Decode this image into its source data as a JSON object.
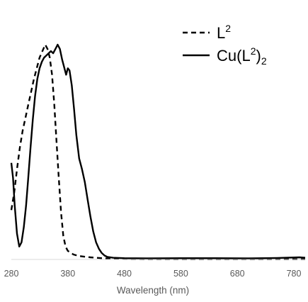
{
  "chart_data": {
    "type": "line",
    "title": "",
    "xlabel": "Wavelength (nm)",
    "ylabel": "",
    "xlim": [
      280,
      800
    ],
    "ylim": [
      0,
      1
    ],
    "xticks": [
      "280",
      "380",
      "480",
      "580",
      "680",
      "780"
    ],
    "grid": false,
    "legend_position": "top-right",
    "series": [
      {
        "name": "L",
        "name_superscript": "2",
        "name_subscript": "",
        "style": "dashed",
        "color": "#000000",
        "points": [
          [
            280,
            0.23
          ],
          [
            285,
            0.31
          ],
          [
            290,
            0.42
          ],
          [
            295,
            0.52
          ],
          [
            300,
            0.6
          ],
          [
            305,
            0.66
          ],
          [
            310,
            0.72
          ],
          [
            315,
            0.78
          ],
          [
            320,
            0.84
          ],
          [
            325,
            0.89
          ],
          [
            330,
            0.94
          ],
          [
            335,
            0.97
          ],
          [
            340,
            1.0
          ],
          [
            344,
            0.98
          ],
          [
            348,
            0.94
          ],
          [
            352,
            0.86
          ],
          [
            356,
            0.72
          ],
          [
            360,
            0.55
          ],
          [
            364,
            0.38
          ],
          [
            368,
            0.22
          ],
          [
            372,
            0.11
          ],
          [
            376,
            0.06
          ],
          [
            380,
            0.04
          ],
          [
            390,
            0.023
          ],
          [
            400,
            0.016
          ],
          [
            420,
            0.01
          ],
          [
            440,
            0.006
          ],
          [
            460,
            0.003
          ],
          [
            480,
            0.002
          ],
          [
            520,
            0.001
          ],
          [
            600,
            0.001
          ],
          [
            700,
            0.001
          ],
          [
            800,
            0.001
          ]
        ]
      },
      {
        "name": "Cu(L",
        "name_superscript": "2",
        "name_subscript": "2",
        "name_suffix": ")",
        "style": "solid",
        "color": "#000000",
        "points": [
          [
            280,
            0.45
          ],
          [
            283,
            0.38
          ],
          [
            286,
            0.25
          ],
          [
            290,
            0.12
          ],
          [
            294,
            0.06
          ],
          [
            298,
            0.08
          ],
          [
            302,
            0.15
          ],
          [
            306,
            0.25
          ],
          [
            310,
            0.38
          ],
          [
            314,
            0.52
          ],
          [
            318,
            0.65
          ],
          [
            322,
            0.76
          ],
          [
            326,
            0.84
          ],
          [
            330,
            0.89
          ],
          [
            334,
            0.92
          ],
          [
            338,
            0.94
          ],
          [
            342,
            0.95
          ],
          [
            346,
            0.96
          ],
          [
            350,
            0.97
          ],
          [
            354,
            0.96
          ],
          [
            358,
            0.98
          ],
          [
            362,
            1.0
          ],
          [
            366,
            0.98
          ],
          [
            370,
            0.93
          ],
          [
            374,
            0.89
          ],
          [
            377,
            0.86
          ],
          [
            380,
            0.89
          ],
          [
            383,
            0.88
          ],
          [
            387,
            0.81
          ],
          [
            391,
            0.7
          ],
          [
            395,
            0.58
          ],
          [
            400,
            0.47
          ],
          [
            405,
            0.42
          ],
          [
            410,
            0.36
          ],
          [
            415,
            0.28
          ],
          [
            420,
            0.2
          ],
          [
            425,
            0.13
          ],
          [
            430,
            0.08
          ],
          [
            435,
            0.05
          ],
          [
            440,
            0.03
          ],
          [
            445,
            0.018
          ],
          [
            450,
            0.012
          ],
          [
            460,
            0.008
          ],
          [
            480,
            0.006
          ],
          [
            520,
            0.005
          ],
          [
            580,
            0.006
          ],
          [
            640,
            0.006
          ],
          [
            700,
            0.005
          ],
          [
            750,
            0.007
          ],
          [
            790,
            0.01
          ],
          [
            800,
            0.008
          ]
        ]
      }
    ]
  }
}
